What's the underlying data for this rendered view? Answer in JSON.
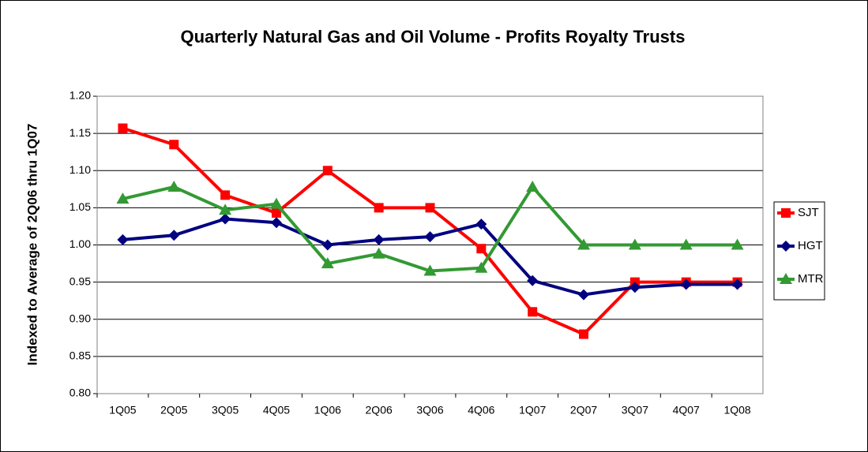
{
  "chart_data": {
    "type": "line",
    "title": "Quarterly Natural Gas and Oil Volume - Profits Royalty Trusts",
    "y_label": "Indexed to Average of 2Q06 thru 1Q07",
    "categories": [
      "1Q05",
      "2Q05",
      "3Q05",
      "4Q05",
      "1Q06",
      "2Q06",
      "3Q06",
      "4Q06",
      "1Q07",
      "2Q07",
      "3Q07",
      "4Q07",
      "1Q08"
    ],
    "series": [
      {
        "name": "SJT",
        "color": "#ff0000",
        "marker": "square",
        "values": [
          1.157,
          1.135,
          1.067,
          1.043,
          1.1,
          1.05,
          1.05,
          0.995,
          0.91,
          0.88,
          0.95,
          0.95,
          0.95
        ]
      },
      {
        "name": "HGT",
        "color": "#000080",
        "marker": "diamond",
        "values": [
          1.007,
          1.013,
          1.035,
          1.03,
          1.0,
          1.007,
          1.011,
          1.028,
          0.952,
          0.933,
          0.943,
          0.947,
          0.947
        ]
      },
      {
        "name": "MTR",
        "color": "#339933",
        "marker": "triangle",
        "values": [
          1.062,
          1.078,
          1.047,
          1.055,
          0.975,
          0.988,
          0.965,
          0.969,
          1.078,
          1.0,
          1.0,
          1.0,
          1.0
        ]
      }
    ],
    "ylim": [
      0.8,
      1.2
    ],
    "yticks": [
      {
        "value": 0.8,
        "label": "0.80"
      },
      {
        "value": 0.85,
        "label": "0.85"
      },
      {
        "value": 0.9,
        "label": "0.90"
      },
      {
        "value": 0.95,
        "label": "0.95"
      },
      {
        "value": 1.0,
        "label": "1.00"
      },
      {
        "value": 1.05,
        "label": "1.05"
      },
      {
        "value": 1.1,
        "label": "1.10"
      },
      {
        "value": 1.15,
        "label": "1.15"
      },
      {
        "value": 1.2,
        "label": "1.20"
      }
    ],
    "grid": true,
    "legend": "right"
  }
}
